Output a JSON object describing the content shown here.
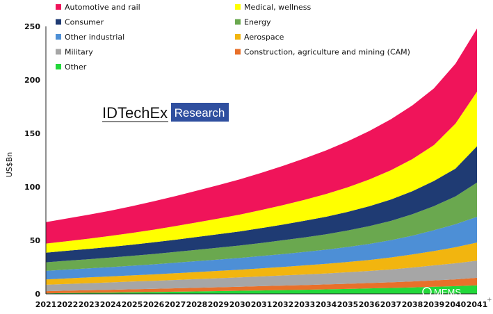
{
  "chart_data": {
    "type": "area",
    "stacked": true,
    "ylabel": "US$Bn",
    "ylim": [
      0,
      250
    ],
    "yticks": [
      0,
      50,
      100,
      150,
      200,
      250
    ],
    "x": [
      "2021",
      "2022",
      "2023",
      "2024",
      "2025",
      "2026",
      "2027",
      "2028",
      "2029",
      "2030",
      "2031",
      "2032",
      "2033",
      "2034",
      "2035",
      "2036",
      "2037",
      "2038",
      "2039",
      "2040",
      "2041"
    ],
    "legend_placement": "top",
    "series": [
      {
        "name": "Other",
        "color": "#22d83a",
        "values": [
          0.5,
          0.8,
          1.0,
          1.2,
          1.5,
          1.7,
          2.0,
          2.3,
          2.6,
          2.9,
          3.2,
          3.5,
          3.8,
          4.2,
          4.6,
          5.1,
          5.5,
          6.0,
          6.6,
          7.2,
          8.0
        ]
      },
      {
        "name": "Construction, agriculture and mining (CAM)",
        "color": "#e8702a",
        "values": [
          2.0,
          2.2,
          2.4,
          2.6,
          2.8,
          3.0,
          3.2,
          3.4,
          3.6,
          3.8,
          4.0,
          4.2,
          4.4,
          4.6,
          4.8,
          5.0,
          5.3,
          5.6,
          6.0,
          6.4,
          7.0
        ]
      },
      {
        "name": "Military",
        "color": "#a6a6a6",
        "values": [
          6.0,
          6.3,
          6.6,
          6.9,
          7.2,
          7.5,
          7.8,
          8.1,
          8.4,
          8.7,
          9.1,
          9.5,
          9.9,
          10.3,
          10.8,
          11.3,
          12.0,
          13.0,
          14.0,
          15.0,
          16.0
        ]
      },
      {
        "name": "Aerospace",
        "color": "#f2b50f",
        "values": [
          5.0,
          5.2,
          5.4,
          5.6,
          5.8,
          6.0,
          6.3,
          6.6,
          6.9,
          7.2,
          7.6,
          8.0,
          8.5,
          9.0,
          9.6,
          10.3,
          11.2,
          12.2,
          13.4,
          15.0,
          17.0
        ]
      },
      {
        "name": "Other industrial",
        "color": "#4d8fd6",
        "values": [
          8.0,
          8.2,
          8.4,
          8.7,
          9.0,
          9.4,
          9.8,
          10.2,
          10.6,
          11.0,
          11.5,
          12.0,
          12.6,
          13.2,
          14.0,
          15.0,
          16.2,
          17.6,
          19.5,
          21.5,
          24.0
        ]
      },
      {
        "name": "Energy",
        "color": "#6aa84f",
        "values": [
          8.0,
          8.3,
          8.6,
          8.9,
          9.3,
          9.7,
          10.1,
          10.6,
          11.1,
          11.6,
          12.2,
          12.9,
          13.6,
          14.4,
          15.4,
          16.6,
          18.0,
          20.0,
          22.5,
          26.0,
          32.0
        ]
      },
      {
        "name": "Consumer",
        "color": "#1f3b73",
        "values": [
          9.0,
          9.3,
          9.6,
          10.0,
          10.4,
          10.9,
          11.4,
          12.0,
          12.6,
          13.2,
          13.9,
          14.7,
          15.5,
          16.4,
          17.4,
          18.6,
          20.0,
          21.6,
          23.5,
          26.0,
          34.0
        ]
      },
      {
        "name": "Medical, wellness",
        "color": "#ffff00",
        "values": [
          8.5,
          9.0,
          9.6,
          10.3,
          11.0,
          11.8,
          12.7,
          13.6,
          14.6,
          15.7,
          16.9,
          18.2,
          19.6,
          21.2,
          23.0,
          25.0,
          27.3,
          30.0,
          33.5,
          42.0,
          51.0
        ]
      },
      {
        "name": "Automotive and rail",
        "color": "#f0145a",
        "values": [
          20.0,
          21.2,
          22.4,
          23.6,
          25.0,
          26.5,
          28.0,
          29.6,
          31.2,
          33.0,
          34.8,
          36.7,
          38.7,
          40.8,
          43.0,
          45.3,
          47.7,
          50.2,
          53.0,
          56.0,
          59.0
        ]
      }
    ]
  },
  "legend": {
    "left": [
      "Automotive and rail",
      "Consumer",
      "Other industrial",
      "Military",
      "Other"
    ],
    "right": [
      "Medical, wellness",
      "Energy",
      "Aerospace",
      "Construction, agriculture and mining (CAM)"
    ]
  },
  "branding": {
    "main": "IDTechEx",
    "sub": "Research",
    "sub_bg": "#2f4f9f"
  },
  "watermark": {
    "text": "MEMS"
  },
  "edge_mark": "+"
}
